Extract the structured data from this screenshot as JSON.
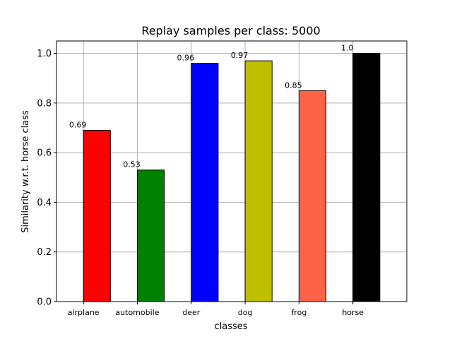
{
  "chart_data": {
    "type": "bar",
    "title": "Replay samples per class: 5000",
    "xlabel": "classes",
    "ylabel": "Similarity w.r.t. horse class",
    "categories": [
      "airplane",
      "automobile",
      "deer",
      "dog",
      "frog",
      "horse"
    ],
    "values": [
      0.69,
      0.53,
      0.96,
      0.97,
      0.85,
      1.0
    ],
    "value_labels": [
      "0.69",
      "0.53",
      "0.96",
      "0.97",
      "0.85",
      "1.0"
    ],
    "colors": [
      "#ff0000",
      "#008000",
      "#0000ff",
      "#bfbf00",
      "#ff6347",
      "#000000"
    ],
    "ylim": [
      0,
      1.05
    ],
    "yticks": [
      0.0,
      0.2,
      0.4,
      0.6,
      0.8,
      1.0
    ],
    "ytick_labels": [
      "0.0",
      "0.2",
      "0.4",
      "0.6",
      "0.8",
      "1.0"
    ],
    "grid": true,
    "legend": "none"
  }
}
